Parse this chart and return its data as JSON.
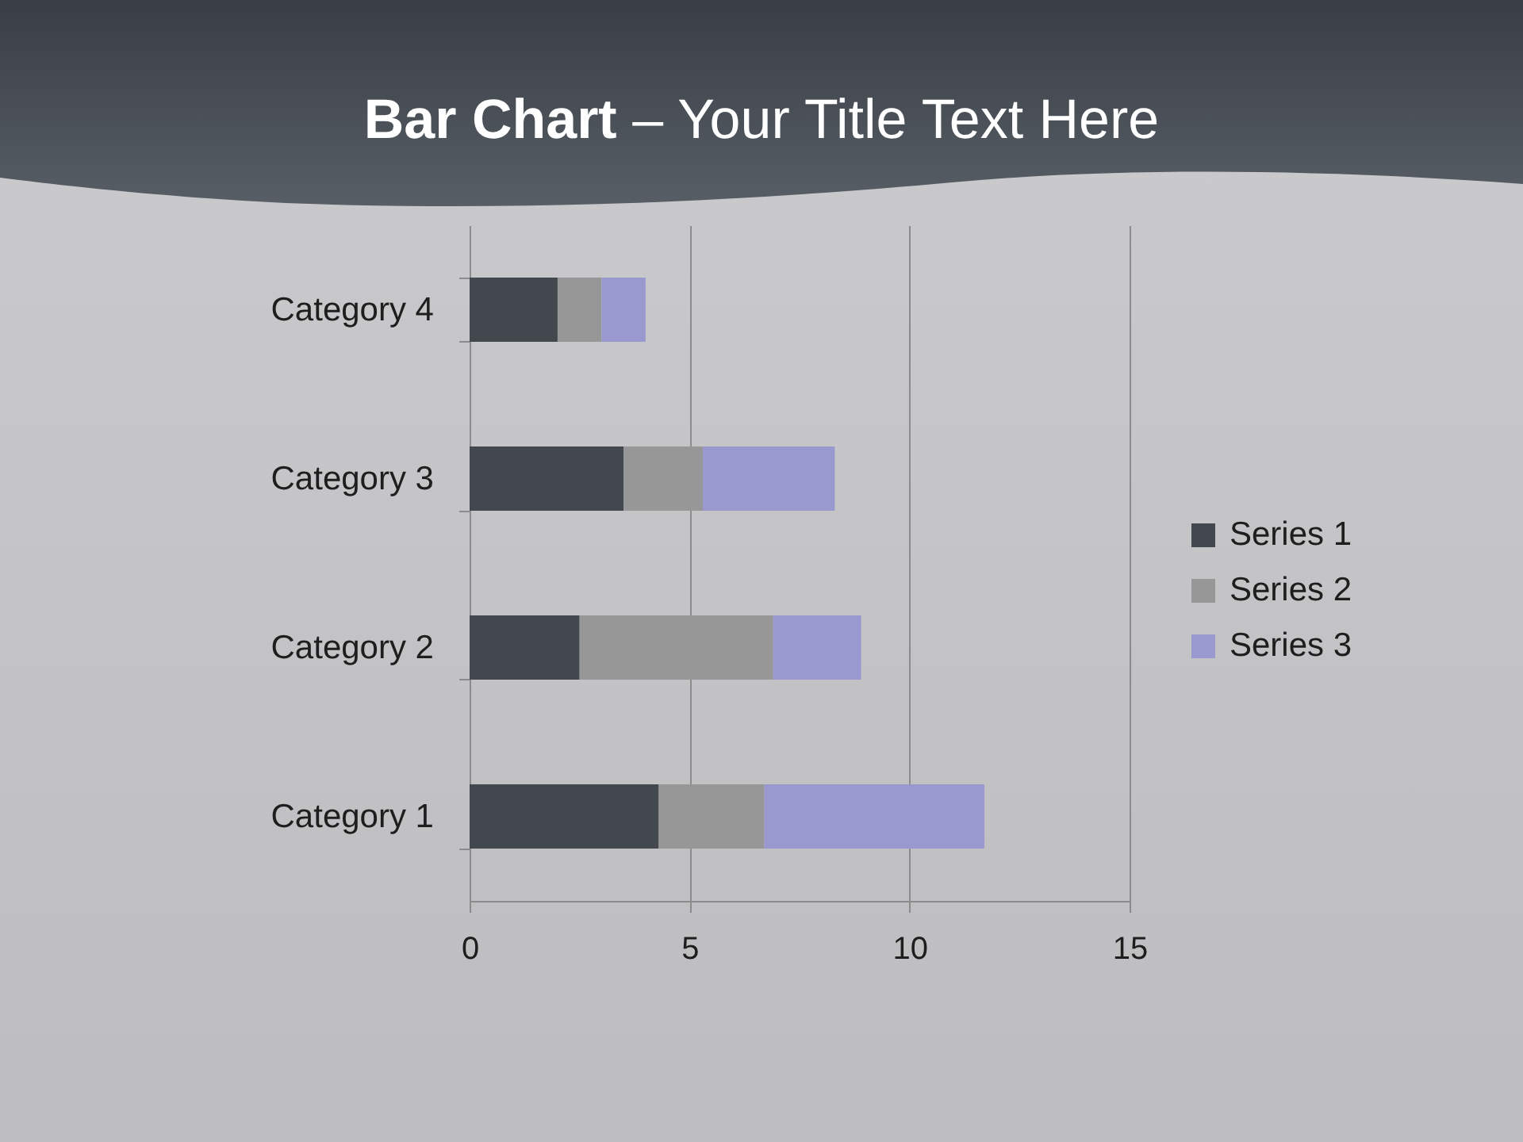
{
  "chart_data": {
    "type": "bar",
    "title": "Bar Chart – Your Title Text Here",
    "orientation": "horizontal",
    "stacked": true,
    "categories": [
      "Category 4",
      "Category 3",
      "Category 2",
      "Category 1"
    ],
    "series": [
      {
        "name": "Series 1",
        "color": "#42484e",
        "values": [
          2,
          3.5,
          2.5,
          4.3
        ]
      },
      {
        "name": "Series 2",
        "color": "#979797",
        "values": [
          1,
          1.8,
          4.4,
          2.4
        ]
      },
      {
        "name": "Series 3",
        "color": "#9a99cf",
        "values": [
          1,
          3,
          2,
          5
        ]
      }
    ],
    "xlim": [
      0,
      15
    ],
    "xticks": [
      0,
      5,
      10,
      15
    ],
    "grid": "x",
    "legend": "right"
  }
}
